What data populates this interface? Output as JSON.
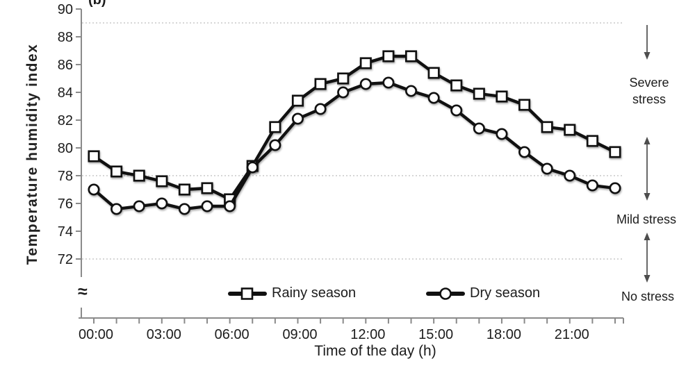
{
  "panel_label": "(b)",
  "break_symbol": "≈",
  "axes": {
    "y_label": "Temperature humidity index",
    "x_label": "Time of the day (h)"
  },
  "legend": {
    "rainy": "Rainy season",
    "dry": "Dry season"
  },
  "annotations": {
    "severe": "Severe stress",
    "mild": "Mild stress",
    "none": "No stress"
  },
  "chart_data": {
    "type": "line",
    "title": "",
    "xlabel": "Time of the day (h)",
    "ylabel": "Temperature humidity index",
    "x_hours": [
      0,
      1,
      2,
      3,
      4,
      5,
      6,
      7,
      8,
      9,
      10,
      11,
      12,
      13,
      14,
      15,
      16,
      17,
      18,
      19,
      20,
      21,
      22,
      23
    ],
    "x_tick_labels": [
      {
        "hour": 0,
        "label": "00:00"
      },
      {
        "hour": 3,
        "label": "03:00"
      },
      {
        "hour": 6,
        "label": "06:00"
      },
      {
        "hour": 9,
        "label": "09:00"
      },
      {
        "hour": 12,
        "label": "12:00"
      },
      {
        "hour": 15,
        "label": "15:00"
      },
      {
        "hour": 18,
        "label": "18:00"
      },
      {
        "hour": 21,
        "label": "21:00"
      }
    ],
    "y_ticks": [
      72,
      74,
      76,
      78,
      80,
      82,
      84,
      86,
      88,
      90
    ],
    "ylim": [
      72,
      90
    ],
    "y_axis_break": true,
    "gridlines_y": [
      89,
      78,
      72
    ],
    "grid_style": "dotted horizontal threshold lines",
    "legend_position": "bottom-inside",
    "series": [
      {
        "name": "Rainy season",
        "marker": "square",
        "color": "#111111",
        "values": [
          79.4,
          78.3,
          78.0,
          77.6,
          77.0,
          77.1,
          76.3,
          78.7,
          81.5,
          83.4,
          84.6,
          85.0,
          86.1,
          86.6,
          86.6,
          85.4,
          84.5,
          83.9,
          83.7,
          83.1,
          81.5,
          81.3,
          80.5,
          79.7
        ]
      },
      {
        "name": "Dry season",
        "marker": "circle",
        "color": "#111111",
        "values": [
          77.0,
          75.6,
          75.8,
          76.0,
          75.6,
          75.8,
          75.8,
          78.6,
          80.2,
          82.1,
          82.8,
          84.0,
          84.6,
          84.7,
          84.1,
          83.6,
          82.7,
          81.4,
          81.0,
          79.7,
          78.5,
          78.0,
          77.3,
          77.1
        ]
      }
    ],
    "stress_zones": [
      {
        "label": "Severe stress",
        "between_gridlines": [
          78,
          89
        ]
      },
      {
        "label": "Mild stress",
        "between_gridlines": [
          72,
          78
        ]
      },
      {
        "label": "No stress",
        "between_gridlines": [
          null,
          72
        ]
      }
    ]
  }
}
